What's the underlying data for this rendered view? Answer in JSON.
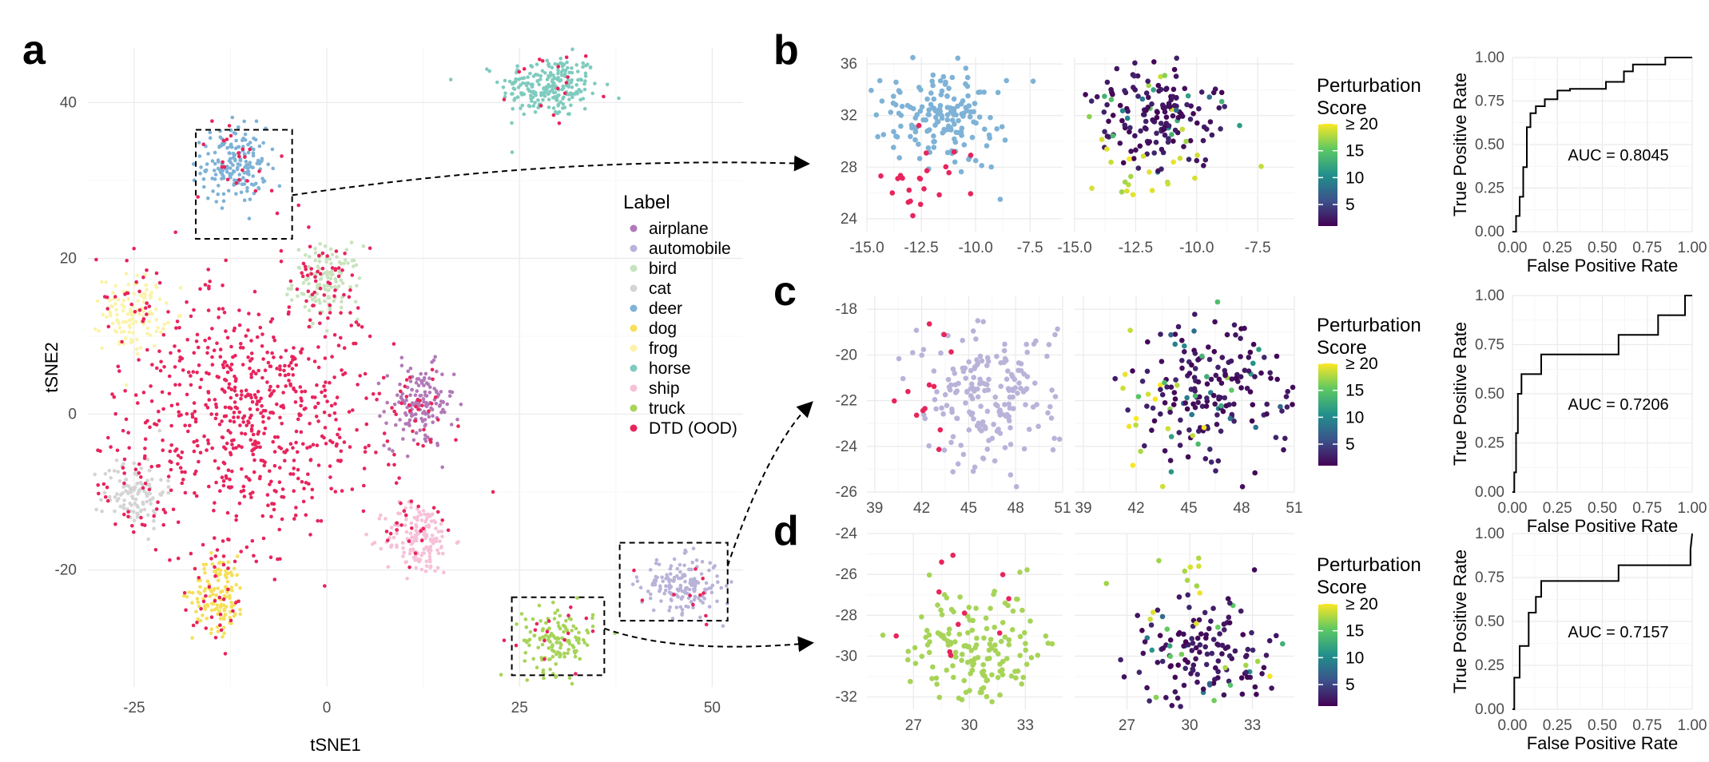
{
  "panel_labels": {
    "a": "a",
    "b": "b",
    "c": "c",
    "d": "d"
  },
  "colors": {
    "airplane": "#b279b8",
    "automobile": "#b9b3d9",
    "bird": "#c8e3bd",
    "cat": "#d4d4d4",
    "deer": "#7eb2d6",
    "dog": "#f5e05a",
    "frog": "#fbf3a8",
    "horse": "#7fcbbf",
    "ship": "#f6c1d8",
    "truck": "#a7d458",
    "ood": "#e8245c",
    "roc_line": "#000000",
    "viridis": [
      "#440154",
      "#3b528b",
      "#21908c",
      "#5dc863",
      "#fde725"
    ]
  },
  "legend": {
    "title": "Label",
    "items": [
      "airplane",
      "automobile",
      "bird",
      "cat",
      "deer",
      "dog",
      "frog",
      "horse",
      "ship",
      "truck",
      "DTD (OOD)"
    ]
  },
  "colorbar": {
    "title_line1": "Perturbation",
    "title_line2": "Score",
    "ticks": [
      "≥ 20",
      "15",
      "10",
      "5"
    ]
  },
  "chart_data": [
    {
      "id": "a",
      "type": "scatter",
      "xlabel": "tSNE1",
      "ylabel": "tSNE2",
      "xlim": [
        -31,
        54
      ],
      "ylim": [
        -35,
        47
      ],
      "xticks": [
        -25,
        0,
        25,
        50
      ],
      "yticks": [
        -20,
        0,
        20,
        40
      ],
      "clusters": [
        {
          "label": "horse",
          "cx": 29,
          "cy": 42,
          "sx": 3.2,
          "sy": 2.0,
          "n": 230
        },
        {
          "label": "deer",
          "cx": -12,
          "cy": 32,
          "sx": 2.1,
          "sy": 2.4,
          "n": 180
        },
        {
          "label": "bird",
          "cx": 0,
          "cy": 17,
          "sx": 2.2,
          "sy": 2.3,
          "n": 120
        },
        {
          "label": "frog",
          "cx": -25,
          "cy": 13,
          "sx": 2.0,
          "sy": 2.4,
          "n": 120
        },
        {
          "label": "airplane",
          "cx": 12,
          "cy": 1,
          "sx": 2.2,
          "sy": 2.6,
          "n": 150
        },
        {
          "label": "cat",
          "cx": -25,
          "cy": -10,
          "sx": 2.0,
          "sy": 2.3,
          "n": 110
        },
        {
          "label": "ship",
          "cx": 12,
          "cy": -16,
          "sx": 2.2,
          "sy": 2.3,
          "n": 160
        },
        {
          "label": "dog",
          "cx": -14,
          "cy": -23,
          "sx": 1.7,
          "sy": 2.4,
          "n": 130
        },
        {
          "label": "truck",
          "cx": 30,
          "cy": -29,
          "sx": 2.3,
          "sy": 2.1,
          "n": 130
        },
        {
          "label": "automobile",
          "cx": 46,
          "cy": -22,
          "sx": 2.6,
          "sy": 1.8,
          "n": 170
        },
        {
          "label": "ood",
          "cx": -10,
          "cy": 0,
          "sx": 8.5,
          "sy": 8.5,
          "n": 900
        }
      ],
      "zoom_boxes": [
        {
          "target": "b",
          "x0": -17,
          "x1": -4.5,
          "y0": 22.5,
          "y1": 36.5
        },
        {
          "target": "c",
          "x0": 38,
          "x1": 52,
          "y0": -26.5,
          "y1": -16.5
        },
        {
          "target": "d",
          "x0": 24,
          "x1": 36,
          "y0": -33.5,
          "y1": -23.5
        }
      ]
    },
    {
      "id": "b",
      "type": "scatter",
      "xlim": [
        -15,
        -6
      ],
      "ylim": [
        23,
        36.5
      ],
      "xticks": [
        -15.0,
        -12.5,
        -10.0,
        -7.5
      ],
      "yticks": [
        24,
        28,
        32,
        36
      ],
      "main_label": "deer",
      "main_center": [
        -11.5,
        32
      ],
      "main_spread": [
        1.4,
        2.0
      ],
      "main_n": 170,
      "ood_n": 22,
      "ood_center": [
        -12,
        27.5
      ],
      "roc": {
        "auc_text": "AUC = 0.8045",
        "fpr": [
          0,
          0.02,
          0.02,
          0.04,
          0.04,
          0.06,
          0.06,
          0.08,
          0.08,
          0.1,
          0.1,
          0.13,
          0.13,
          0.18,
          0.18,
          0.25,
          0.25,
          0.32,
          0.32,
          0.52,
          0.52,
          0.62,
          0.62,
          0.67,
          0.67,
          0.85,
          0.85,
          0.96,
          1
        ],
        "tpr": [
          0,
          0,
          0.09,
          0.09,
          0.2,
          0.2,
          0.37,
          0.37,
          0.6,
          0.6,
          0.68,
          0.68,
          0.72,
          0.72,
          0.76,
          0.76,
          0.81,
          0.81,
          0.82,
          0.82,
          0.86,
          0.86,
          0.92,
          0.92,
          0.96,
          0.96,
          1,
          1,
          1
        ],
        "xlabel": "False Positive Rate",
        "ylabel": "True Positive Rate",
        "ticks": [
          "0.00",
          "0.25",
          "0.50",
          "0.75",
          "1.00"
        ]
      }
    },
    {
      "id": "c",
      "type": "scatter",
      "xlim": [
        38.5,
        51
      ],
      "ylim": [
        -26,
        -17.4
      ],
      "xticks": [
        39,
        42,
        45,
        48,
        51
      ],
      "yticks": [
        -26,
        -24,
        -22,
        -20,
        -18
      ],
      "main_label": "automobile",
      "main_center": [
        46.5,
        -21.7
      ],
      "main_spread": [
        2.2,
        1.5
      ],
      "main_n": 190,
      "ood_n": 12,
      "ood_center": [
        42.5,
        -22
      ],
      "roc": {
        "auc_text": "AUC = 0.7206",
        "fpr": [
          0,
          0.01,
          0.01,
          0.02,
          0.02,
          0.03,
          0.03,
          0.05,
          0.05,
          0.16,
          0.16,
          0.59,
          0.59,
          0.81,
          0.81,
          0.96,
          0.96,
          1
        ],
        "tpr": [
          0,
          0,
          0.1,
          0.1,
          0.3,
          0.3,
          0.5,
          0.5,
          0.6,
          0.6,
          0.7,
          0.7,
          0.8,
          0.8,
          0.9,
          0.9,
          1,
          1
        ],
        "xlabel": "False Positive Rate",
        "ylabel": "True Positive Rate",
        "ticks": [
          "0.00",
          "0.25",
          "0.50",
          "0.75",
          "1.00"
        ]
      }
    },
    {
      "id": "d",
      "type": "scatter",
      "xlim": [
        24.5,
        35
      ],
      "ylim": [
        -32.6,
        -24
      ],
      "xticks": [
        27,
        30,
        33
      ],
      "yticks": [
        -32,
        -30,
        -28,
        -26,
        -24
      ],
      "main_label": "truck",
      "main_center": [
        30.5,
        -29.8
      ],
      "main_spread": [
        1.8,
        1.4
      ],
      "main_n": 150,
      "ood_n": 11,
      "ood_center": [
        29.5,
        -27.2
      ],
      "roc": {
        "auc_text": "AUC = 0.7157",
        "fpr": [
          0,
          0.01,
          0.01,
          0.04,
          0.04,
          0.09,
          0.09,
          0.13,
          0.13,
          0.16,
          0.16,
          0.59,
          0.59,
          0.99,
          0.99,
          1
        ],
        "tpr": [
          0,
          0,
          0.18,
          0.18,
          0.36,
          0.36,
          0.55,
          0.55,
          0.64,
          0.64,
          0.73,
          0.73,
          0.82,
          0.82,
          0.91,
          1
        ],
        "xlabel": "False Positive Rate",
        "ylabel": "True Positive Rate",
        "ticks": [
          "0.00",
          "0.25",
          "0.50",
          "0.75",
          "1.00"
        ]
      }
    }
  ]
}
